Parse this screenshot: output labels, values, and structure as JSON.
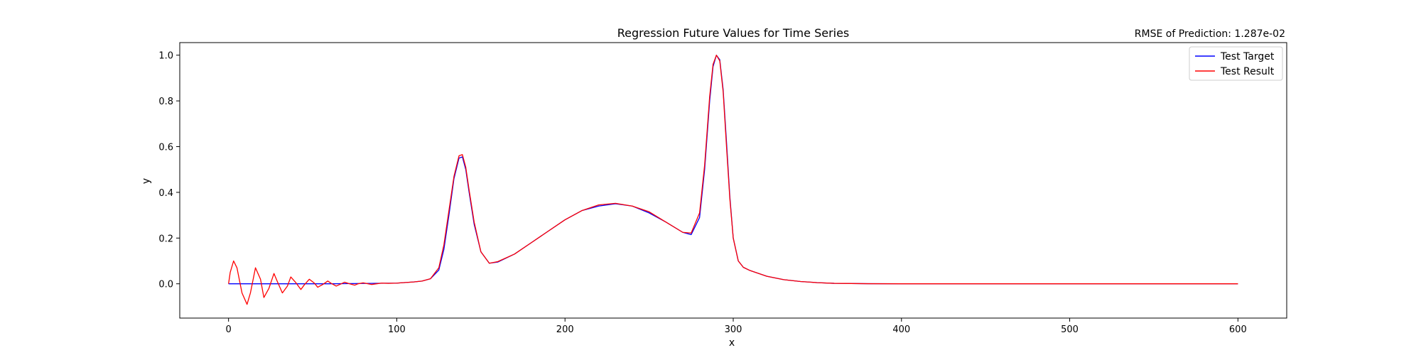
{
  "chart_data": {
    "type": "line",
    "title": "Regression Future Values for Time Series",
    "subtitle": "RMSE of Prediction: 1.287e-02",
    "xlabel": "x",
    "ylabel": "y",
    "xlim": [
      -29,
      629
    ],
    "ylim": [
      -0.15,
      1.055
    ],
    "xticks": [
      0,
      100,
      200,
      300,
      400,
      500,
      600
    ],
    "yticks": [
      0.0,
      0.2,
      0.4,
      0.6,
      0.8,
      1.0
    ],
    "xtick_labels": [
      "0",
      "100",
      "200",
      "300",
      "400",
      "500",
      "600"
    ],
    "ytick_labels": [
      "0.0",
      "0.2",
      "0.4",
      "0.6",
      "0.8",
      "1.0"
    ],
    "grid": false,
    "legend_position": "top-right",
    "series": [
      {
        "name": "Test Target",
        "color": "#0000ff",
        "x": [
          0,
          60,
          100,
          110,
          115,
          120,
          125,
          128,
          131,
          134,
          137,
          139,
          141,
          143,
          146,
          150,
          155,
          160,
          170,
          180,
          190,
          200,
          210,
          220,
          230,
          240,
          250,
          260,
          270,
          275,
          280,
          283,
          286,
          288,
          290,
          292,
          294,
          296,
          298,
          300,
          303,
          306,
          310,
          320,
          330,
          340,
          350,
          360,
          380,
          400,
          500,
          600
        ],
        "y": [
          0.0,
          0.0,
          0.003,
          0.008,
          0.012,
          0.022,
          0.06,
          0.15,
          0.3,
          0.46,
          0.55,
          0.555,
          0.5,
          0.4,
          0.26,
          0.14,
          0.09,
          0.095,
          0.13,
          0.18,
          0.23,
          0.28,
          0.32,
          0.34,
          0.35,
          0.34,
          0.31,
          0.27,
          0.225,
          0.215,
          0.29,
          0.5,
          0.8,
          0.95,
          1.0,
          0.98,
          0.85,
          0.62,
          0.38,
          0.2,
          0.1,
          0.072,
          0.058,
          0.033,
          0.018,
          0.01,
          0.005,
          0.002,
          0.0005,
          0.0,
          0.0,
          0.0
        ]
      },
      {
        "name": "Test Result",
        "color": "#ff0000",
        "x": [
          0,
          1,
          3,
          5,
          8,
          11,
          13,
          16,
          19,
          21,
          24,
          27,
          29,
          32,
          35,
          37,
          40,
          43,
          45,
          48,
          51,
          53,
          56,
          59,
          61,
          64,
          67,
          69,
          72,
          75,
          77,
          80,
          83,
          85,
          88,
          91,
          95,
          100,
          110,
          115,
          120,
          125,
          128,
          131,
          134,
          137,
          139,
          141,
          143,
          146,
          150,
          155,
          160,
          170,
          180,
          190,
          200,
          210,
          220,
          230,
          240,
          250,
          260,
          270,
          275,
          280,
          283,
          286,
          288,
          290,
          292,
          294,
          296,
          298,
          300,
          303,
          306,
          310,
          320,
          330,
          340,
          350,
          360,
          380,
          400,
          500,
          600
        ],
        "y": [
          0.0,
          0.05,
          0.1,
          0.07,
          -0.04,
          -0.09,
          -0.04,
          0.07,
          0.02,
          -0.06,
          -0.02,
          0.045,
          0.01,
          -0.04,
          -0.01,
          0.03,
          0.005,
          -0.025,
          -0.005,
          0.02,
          0.003,
          -0.015,
          -0.003,
          0.012,
          0.002,
          -0.01,
          0.0,
          0.007,
          0.0,
          -0.006,
          0.0,
          0.004,
          0.0,
          -0.003,
          0.0,
          0.003,
          0.002,
          0.003,
          0.008,
          0.012,
          0.022,
          0.07,
          0.17,
          0.32,
          0.47,
          0.56,
          0.565,
          0.51,
          0.41,
          0.27,
          0.14,
          0.09,
          0.097,
          0.13,
          0.18,
          0.23,
          0.28,
          0.32,
          0.345,
          0.352,
          0.34,
          0.315,
          0.27,
          0.225,
          0.222,
          0.31,
          0.52,
          0.82,
          0.96,
          1.0,
          0.975,
          0.84,
          0.6,
          0.37,
          0.2,
          0.1,
          0.072,
          0.058,
          0.033,
          0.018,
          0.01,
          0.005,
          0.002,
          0.0005,
          0.0,
          0.0,
          0.0
        ]
      }
    ]
  }
}
